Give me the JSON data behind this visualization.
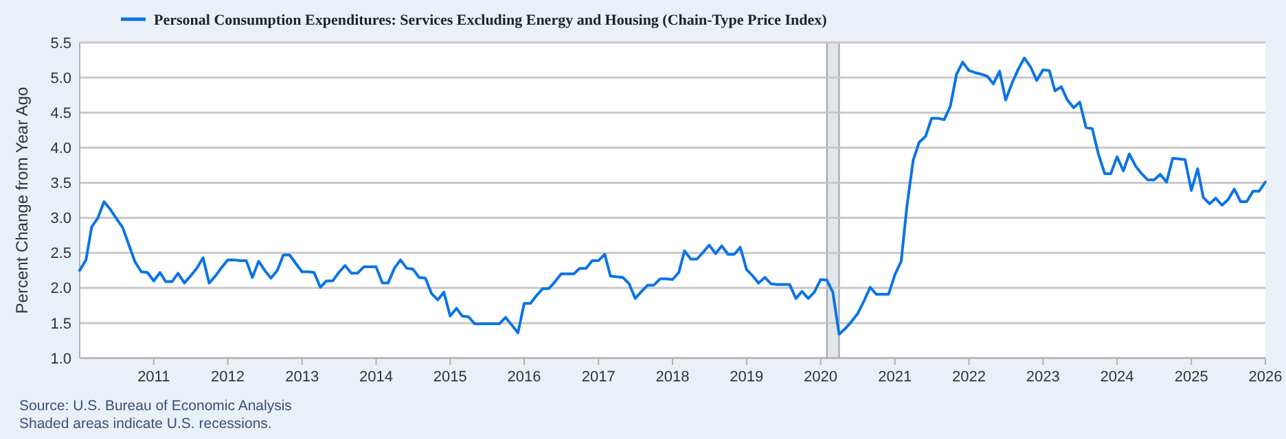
{
  "chart_data": {
    "type": "line",
    "ylabel": "Percent Change from Year Ago",
    "legend": "top left",
    "grid": "y",
    "annotations": [
      "Source: U.S. Bureau of Economic Analysis",
      "Shaded areas indicate U.S. recessions."
    ],
    "xlim": [
      "2010-01",
      "2026-01"
    ],
    "xticks": [
      "2011",
      "2012",
      "2013",
      "2014",
      "2015",
      "2016",
      "2017",
      "2018",
      "2019",
      "2020",
      "2021",
      "2022",
      "2023",
      "2024",
      "2025",
      "2026"
    ],
    "ylim": [
      1,
      5.5
    ],
    "yticks": [
      {
        "value": 1,
        "label": "1.0"
      },
      {
        "value": 1.5,
        "label": "1.5"
      },
      {
        "value": 2,
        "label": "2.0"
      },
      {
        "value": 2.5,
        "label": "2.5"
      },
      {
        "value": 3,
        "label": "3.0"
      },
      {
        "value": 3.5,
        "label": "3.5"
      },
      {
        "value": 4,
        "label": "4.0"
      },
      {
        "value": 4.5,
        "label": "4.5"
      },
      {
        "value": 5,
        "label": "5.0"
      },
      {
        "value": 5.5,
        "label": "5.5"
      }
    ],
    "bands": [
      {
        "axis": "x",
        "from": "2020-02",
        "to": "2020-04",
        "color": "#e1e6ea"
      }
    ],
    "x": [
      "2010-01",
      "2010-02",
      "2010-03",
      "2010-04",
      "2010-05",
      "2010-06",
      "2010-07",
      "2010-08",
      "2010-09",
      "2010-10",
      "2010-11",
      "2010-12",
      "2011-01",
      "2011-02",
      "2011-03",
      "2011-04",
      "2011-05",
      "2011-06",
      "2011-07",
      "2011-08",
      "2011-09",
      "2011-10",
      "2011-11",
      "2011-12",
      "2012-01",
      "2012-02",
      "2012-03",
      "2012-04",
      "2012-05",
      "2012-06",
      "2012-07",
      "2012-08",
      "2012-09",
      "2012-10",
      "2012-11",
      "2012-12",
      "2013-01",
      "2013-02",
      "2013-03",
      "2013-04",
      "2013-05",
      "2013-06",
      "2013-07",
      "2013-08",
      "2013-09",
      "2013-10",
      "2013-11",
      "2013-12",
      "2014-01",
      "2014-02",
      "2014-03",
      "2014-04",
      "2014-05",
      "2014-06",
      "2014-07",
      "2014-08",
      "2014-09",
      "2014-10",
      "2014-11",
      "2014-12",
      "2015-01",
      "2015-02",
      "2015-03",
      "2015-04",
      "2015-05",
      "2015-06",
      "2015-07",
      "2015-08",
      "2015-09",
      "2015-10",
      "2015-11",
      "2015-12",
      "2016-01",
      "2016-02",
      "2016-03",
      "2016-04",
      "2016-05",
      "2016-06",
      "2016-07",
      "2016-08",
      "2016-09",
      "2016-10",
      "2016-11",
      "2016-12",
      "2017-01",
      "2017-02",
      "2017-03",
      "2017-04",
      "2017-05",
      "2017-06",
      "2017-07",
      "2017-08",
      "2017-09",
      "2017-10",
      "2017-11",
      "2017-12",
      "2018-01",
      "2018-02",
      "2018-03",
      "2018-04",
      "2018-05",
      "2018-06",
      "2018-07",
      "2018-08",
      "2018-09",
      "2018-10",
      "2018-11",
      "2018-12",
      "2019-01",
      "2019-02",
      "2019-03",
      "2019-04",
      "2019-05",
      "2019-06",
      "2019-07",
      "2019-08",
      "2019-09",
      "2019-10",
      "2019-11",
      "2019-12",
      "2020-01",
      "2020-02",
      "2020-03",
      "2020-04",
      "2020-05",
      "2020-06",
      "2020-07",
      "2020-08",
      "2020-09",
      "2020-10",
      "2020-11",
      "2020-12",
      "2021-01",
      "2021-02",
      "2021-03",
      "2021-04",
      "2021-05",
      "2021-06",
      "2021-07",
      "2021-08",
      "2021-09",
      "2021-10",
      "2021-11",
      "2021-12",
      "2022-01",
      "2022-02",
      "2022-03",
      "2022-04",
      "2022-05",
      "2022-06",
      "2022-07",
      "2022-08",
      "2022-09",
      "2022-10",
      "2022-11",
      "2022-12",
      "2023-01",
      "2023-02",
      "2023-03",
      "2023-04",
      "2023-05",
      "2023-06",
      "2023-07",
      "2023-08",
      "2023-09",
      "2023-10",
      "2023-11",
      "2023-12",
      "2024-01",
      "2024-02",
      "2024-03",
      "2024-04",
      "2024-05",
      "2024-06",
      "2024-07",
      "2024-08",
      "2024-09",
      "2024-10",
      "2024-11",
      "2024-12",
      "2025-01",
      "2025-02",
      "2025-03",
      "2025-04",
      "2025-05",
      "2025-06",
      "2025-07",
      "2025-08",
      "2025-09",
      "2025-10",
      "2025-11",
      "2025-12",
      "2026-01"
    ],
    "series": [
      {
        "name": "Personal Consumption Expenditures: Services Excluding Energy and Housing (Chain-Type Price Index)",
        "color": "#0b74e6",
        "values": [
          2.25,
          2.4,
          2.87,
          3.0,
          3.23,
          3.12,
          2.99,
          2.86,
          2.61,
          2.37,
          2.23,
          2.22,
          2.1,
          2.22,
          2.09,
          2.09,
          2.21,
          2.07,
          2.17,
          2.28,
          2.43,
          2.07,
          2.17,
          2.29,
          2.4,
          2.4,
          2.39,
          2.39,
          2.15,
          2.38,
          2.25,
          2.14,
          2.25,
          2.47,
          2.47,
          2.35,
          2.23,
          2.23,
          2.22,
          2.01,
          2.1,
          2.1,
          2.22,
          2.32,
          2.21,
          2.21,
          2.3,
          2.3,
          2.3,
          2.07,
          2.07,
          2.28,
          2.4,
          2.28,
          2.27,
          2.15,
          2.14,
          1.92,
          1.83,
          1.94,
          1.6,
          1.71,
          1.6,
          1.59,
          1.49,
          1.49,
          1.49,
          1.49,
          1.49,
          1.58,
          1.47,
          1.36,
          1.78,
          1.78,
          1.89,
          1.99,
          1.99,
          2.09,
          2.2,
          2.2,
          2.2,
          2.28,
          2.28,
          2.39,
          2.39,
          2.48,
          2.17,
          2.16,
          2.15,
          2.06,
          1.85,
          1.95,
          2.04,
          2.04,
          2.13,
          2.13,
          2.12,
          2.22,
          2.53,
          2.41,
          2.41,
          2.51,
          2.61,
          2.49,
          2.6,
          2.48,
          2.48,
          2.58,
          2.26,
          2.17,
          2.07,
          2.15,
          2.06,
          2.05,
          2.05,
          2.05,
          1.85,
          1.95,
          1.85,
          1.94,
          2.12,
          2.11,
          1.94,
          1.34,
          1.42,
          1.52,
          1.63,
          1.81,
          2.01,
          1.91,
          1.91,
          1.91,
          2.19,
          2.38,
          3.16,
          3.82,
          4.08,
          4.16,
          4.42,
          4.42,
          4.4,
          4.59,
          5.05,
          5.22,
          5.1,
          5.07,
          5.05,
          5.02,
          4.91,
          5.09,
          4.68,
          4.92,
          5.12,
          5.28,
          5.15,
          4.96,
          5.11,
          5.1,
          4.81,
          4.87,
          4.68,
          4.57,
          4.65,
          4.29,
          4.27,
          3.91,
          3.63,
          3.63,
          3.87,
          3.67,
          3.91,
          3.74,
          3.63,
          3.54,
          3.54,
          3.62,
          3.51,
          3.85,
          3.84,
          3.83,
          3.39,
          3.7,
          3.29,
          3.2,
          3.28,
          3.18,
          3.26,
          3.41,
          3.23,
          3.23,
          3.38,
          3.38,
          3.51
        ]
      }
    ]
  }
}
